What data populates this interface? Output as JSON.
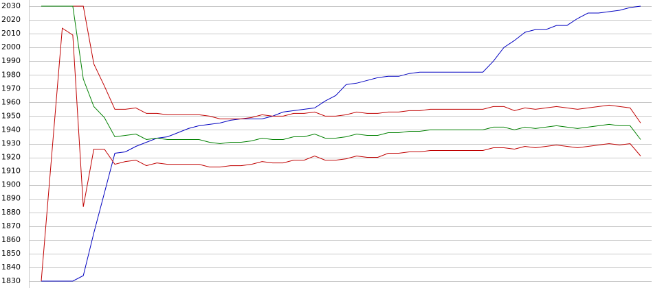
{
  "chart_data": {
    "type": "line",
    "categories": [
      null,
      null,
      null,
      null,
      null,
      null,
      null,
      null,
      null,
      null,
      null,
      null,
      null,
      null,
      null,
      null,
      null,
      null,
      null,
      null,
      null,
      null,
      null,
      null,
      null,
      null,
      null,
      null,
      null,
      null,
      null,
      null,
      null,
      null,
      null,
      null,
      null,
      null,
      null,
      null,
      null,
      null,
      null,
      null,
      null,
      null,
      null,
      null,
      null,
      null,
      null,
      null,
      null,
      null,
      null,
      null,
      null,
      null
    ],
    "series": [
      {
        "color": "#0000c0",
        "values": [
          1830,
          1830,
          1830,
          1830,
          1834,
          1865,
          1894,
          1923,
          1924,
          1928,
          1931,
          1934,
          1935,
          1938,
          1941,
          1943,
          1944,
          1945,
          1947,
          1948,
          1948,
          1948,
          1950,
          1953,
          1954,
          1955,
          1956,
          1961,
          1965,
          1973,
          1974,
          1976,
          1978,
          1979,
          1979,
          1981,
          1982,
          1982,
          1982,
          1982,
          1982,
          1982,
          1982,
          1990,
          2000,
          2005,
          2011,
          2013,
          2013,
          2016,
          2016,
          2021,
          2025,
          2025,
          2026,
          2027,
          2029,
          2030
        ]
      },
      {
        "color": "#c00000",
        "values": [
          2030,
          2030,
          2030,
          2030,
          2030,
          1988,
          1972,
          1955,
          1955,
          1956,
          1952,
          1952,
          1951,
          1951,
          1951,
          1951,
          1950,
          1948,
          1948,
          1948,
          1949,
          1951,
          1950,
          1950,
          1952,
          1952,
          1953,
          1950,
          1950,
          1951,
          1953,
          1952,
          1952,
          1953,
          1953,
          1954,
          1954,
          1955,
          1955,
          1955,
          1955,
          1955,
          1955,
          1957,
          1957,
          1954,
          1956,
          1955,
          1956,
          1957,
          1956,
          1955,
          1956,
          1957,
          1958,
          1957,
          1956,
          1945
        ]
      },
      {
        "color": "#008000",
        "values": [
          2030,
          2030,
          2030,
          2030,
          1977,
          1957,
          1949,
          1935,
          1936,
          1937,
          1933,
          1934,
          1933,
          1933,
          1933,
          1933,
          1931,
          1930,
          1931,
          1931,
          1932,
          1934,
          1933,
          1933,
          1935,
          1935,
          1937,
          1934,
          1934,
          1935,
          1937,
          1936,
          1936,
          1938,
          1938,
          1939,
          1939,
          1940,
          1940,
          1940,
          1940,
          1940,
          1940,
          1942,
          1942,
          1940,
          1942,
          1941,
          1942,
          1943,
          1942,
          1941,
          1942,
          1943,
          1944,
          1943,
          1943,
          1933
        ]
      },
      {
        "color": "#c00000",
        "values": [
          1830,
          1922,
          2014,
          2009,
          1884,
          1926,
          1926,
          1915,
          1917,
          1918,
          1914,
          1916,
          1915,
          1915,
          1915,
          1915,
          1913,
          1913,
          1914,
          1914,
          1915,
          1917,
          1916,
          1916,
          1918,
          1918,
          1921,
          1918,
          1918,
          1919,
          1921,
          1920,
          1920,
          1923,
          1923,
          1924,
          1924,
          1925,
          1925,
          1925,
          1925,
          1925,
          1925,
          1927,
          1927,
          1926,
          1928,
          1927,
          1928,
          1929,
          1928,
          1927,
          1928,
          1929,
          1930,
          1929,
          1930,
          1921
        ]
      }
    ],
    "ylim": [
      1830,
      2030
    ],
    "yticks": [
      1830,
      1840,
      1850,
      1860,
      1870,
      1880,
      1890,
      1900,
      1910,
      1920,
      1930,
      1940,
      1950,
      1960,
      1970,
      1980,
      1990,
      2000,
      2010,
      2020,
      2030
    ],
    "grid": true
  }
}
